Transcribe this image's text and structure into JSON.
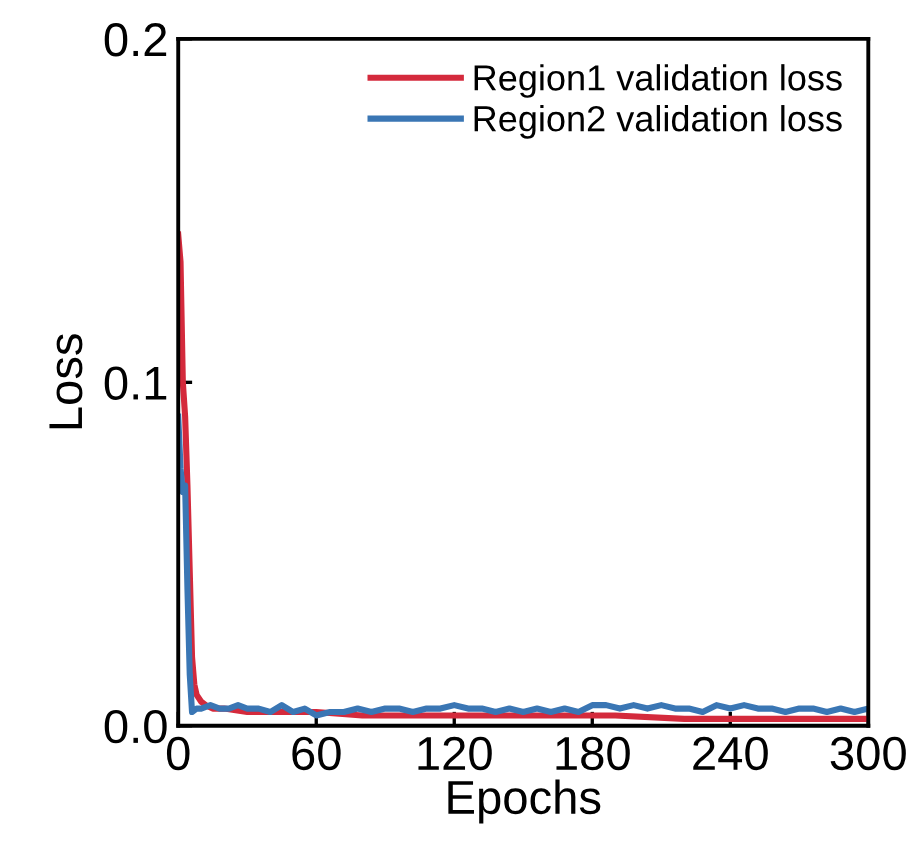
{
  "chart_data": {
    "type": "line",
    "xlabel": "Epochs",
    "ylabel": "Loss",
    "xlim": [
      0,
      300
    ],
    "ylim": [
      0,
      0.2
    ],
    "xticks": [
      0,
      60,
      120,
      180,
      240,
      300
    ],
    "yticks": [
      {
        "value": 0,
        "label": "0.0"
      },
      {
        "value": 0.1,
        "label": "0.1"
      },
      {
        "value": 0.2,
        "label": "0.2"
      }
    ],
    "legend": "top right",
    "grid": false,
    "marker": "none",
    "line_style": "solid",
    "series": [
      {
        "name": "Region1 validation loss",
        "color": "#d42a3c",
        "x": [
          0,
          1,
          2,
          3,
          4,
          5,
          6,
          7,
          8,
          10,
          12,
          15,
          20,
          30,
          45,
          60,
          80,
          100,
          130,
          160,
          190,
          220,
          250,
          280,
          300
        ],
        "values": [
          0.143,
          0.135,
          0.1,
          0.09,
          0.07,
          0.045,
          0.02,
          0.012,
          0.009,
          0.007,
          0.006,
          0.005,
          0.005,
          0.004,
          0.004,
          0.004,
          0.003,
          0.003,
          0.003,
          0.003,
          0.003,
          0.002,
          0.002,
          0.002,
          0.002
        ]
      },
      {
        "name": "Region2 validation loss",
        "color": "#3a76b4",
        "x": [
          0,
          1,
          2,
          3,
          4,
          5,
          6,
          8,
          10,
          14,
          18,
          22,
          26,
          30,
          35,
          40,
          45,
          50,
          55,
          60,
          66,
          72,
          78,
          84,
          90,
          96,
          102,
          108,
          114,
          120,
          126,
          132,
          138,
          144,
          150,
          156,
          162,
          168,
          174,
          180,
          186,
          192,
          198,
          204,
          210,
          216,
          222,
          228,
          234,
          240,
          246,
          252,
          258,
          264,
          270,
          276,
          282,
          288,
          294,
          300
        ],
        "values": [
          0.09,
          0.075,
          0.068,
          0.07,
          0.04,
          0.015,
          0.004,
          0.005,
          0.005,
          0.006,
          0.005,
          0.005,
          0.006,
          0.005,
          0.005,
          0.004,
          0.006,
          0.004,
          0.005,
          0.003,
          0.004,
          0.004,
          0.005,
          0.004,
          0.005,
          0.005,
          0.004,
          0.005,
          0.005,
          0.006,
          0.005,
          0.005,
          0.004,
          0.005,
          0.004,
          0.005,
          0.004,
          0.005,
          0.004,
          0.006,
          0.006,
          0.005,
          0.006,
          0.005,
          0.006,
          0.005,
          0.005,
          0.004,
          0.006,
          0.005,
          0.006,
          0.005,
          0.005,
          0.004,
          0.005,
          0.005,
          0.004,
          0.005,
          0.004,
          0.005
        ]
      }
    ]
  }
}
